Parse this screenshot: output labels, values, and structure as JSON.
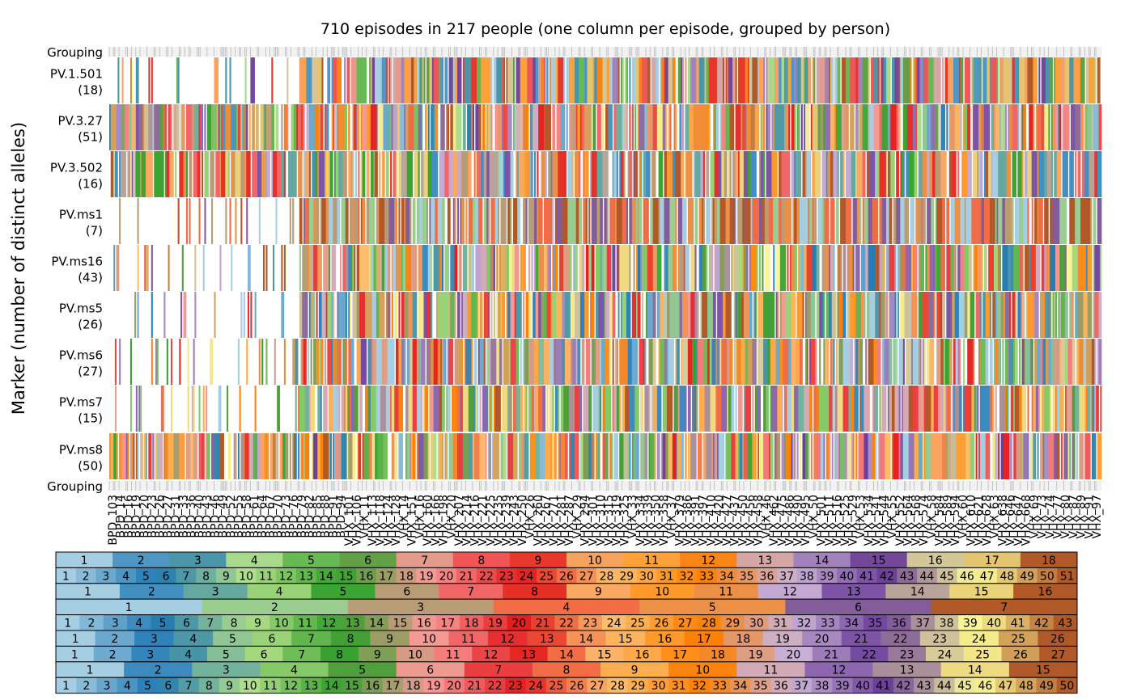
{
  "chart_data": {
    "type": "heatmap",
    "title": "710 episodes in 217 people (one column per episode, grouped by person)",
    "ylabel": "Marker (number of distinct alleles)",
    "grouping_label": "Grouping",
    "n_episodes": 710,
    "n_people": 217,
    "markers": [
      {
        "name": "PV.1.501",
        "alleles": "(18)",
        "n": 18
      },
      {
        "name": "PV.3.27",
        "alleles": "(51)",
        "n": 51
      },
      {
        "name": "PV.3.502",
        "alleles": "(16)",
        "n": 16
      },
      {
        "name": "PV.ms1",
        "alleles": "(7)",
        "n": 7
      },
      {
        "name": "PV.ms16",
        "alleles": "(43)",
        "n": 43
      },
      {
        "name": "PV.ms5",
        "alleles": "(26)",
        "n": 26
      },
      {
        "name": "PV.ms6",
        "alleles": "(27)",
        "n": 27
      },
      {
        "name": "PV.ms7",
        "alleles": "(15)",
        "n": 15
      },
      {
        "name": "PV.ms8",
        "alleles": "(50)",
        "n": 50
      }
    ],
    "x_tick_labels": [
      "BPD_103",
      "BPD_14",
      "BPD_16",
      "BPD_19",
      "BPD_20",
      "BPD_23",
      "BPD_26",
      "BPD_27",
      "BPD_31",
      "BPD_33",
      "BPD_36",
      "BPD_40",
      "BPD_43",
      "BPD_46",
      "BPD_49",
      "BPD_52",
      "BPD_55",
      "BPD_58",
      "BPD_61",
      "BPD_64",
      "BPD_67",
      "BPD_70",
      "BPD_73",
      "BPD_76",
      "BPD_79",
      "BPD_82",
      "BPD_85",
      "BPD_88",
      "BPD_91",
      "BPD_94",
      "VHX_101",
      "VHX_106",
      "VHX_11",
      "VHX_113",
      "VHX_118",
      "VHX_124",
      "VHX_128",
      "VHX_14",
      "VHX_151",
      "VHX_16",
      "VHX_160",
      "VHX_166",
      "VHX_198",
      "VHX_20",
      "VHX_207",
      "VHX_214",
      "VHX_216",
      "VHX_221",
      "VHX_225",
      "VHX_235",
      "VHX_239",
      "VHX_243",
      "VHX_250",
      "VHX_26",
      "VHX_260",
      "VHX_267",
      "VHX_271",
      "VHX_281",
      "VHX_287",
      "VHX_29",
      "VHX_294",
      "VHX_301",
      "VHX_310",
      "VHX_315",
      "VHX_319",
      "VHX_325",
      "VHX_33",
      "VHX_334",
      "VHX_339",
      "VHX_350",
      "VHX_358",
      "VHX_37",
      "VHX_379",
      "VHX_386",
      "VHX_391",
      "VHX_397",
      "VHX_410",
      "VHX_420",
      "VHX_427",
      "VHX_437",
      "VHX_450",
      "VHX_456",
      "VHX_458",
      "VHX_46",
      "VHX_462",
      "VHX_475",
      "VHX_486",
      "VHX_490",
      "VHX_495",
      "VHX_50",
      "VHX_501",
      "VHX_511",
      "VHX_516",
      "VHX_525",
      "VHX_529",
      "VHX_53",
      "VHX_534",
      "VHX_541",
      "VHX_544",
      "VHX_55",
      "VHX_552",
      "VHX_564",
      "VHX_568",
      "VHX_574",
      "VHX_58",
      "VHX_584",
      "VHX_589",
      "VHX_594",
      "VHX_60",
      "VHX_610",
      "VHX_621",
      "VHX_628",
      "VHX_63",
      "VHX_638",
      "VHX_646",
      "VHX_647",
      "VHX_668",
      "VHX_69",
      "VHX_73",
      "VHX_74",
      "VHX_77",
      "VHX_80",
      "VHX_87",
      "VHX_89",
      "VHX_91",
      "VHX_97"
    ],
    "color_keys": [
      {
        "marker": "PV.1.501",
        "n": 18
      },
      {
        "marker": "PV.3.27",
        "n": 51
      },
      {
        "marker": "PV.3.502",
        "n": 16
      },
      {
        "marker": "PV.ms1",
        "n": 7
      },
      {
        "marker": "PV.ms16",
        "n": 43
      },
      {
        "marker": "PV.ms5",
        "n": 26
      },
      {
        "marker": "PV.ms6",
        "n": 27
      },
      {
        "marker": "PV.ms7",
        "n": 15
      },
      {
        "marker": "PV.ms8",
        "n": 50
      }
    ],
    "palette": [
      "#a6cee3",
      "#1f78b4",
      "#b2df8a",
      "#33a02c",
      "#fb9a99",
      "#e31a1c",
      "#fdbf6f",
      "#ff7f00",
      "#cab2d6",
      "#6a3d9a",
      "#ffff99",
      "#b15928"
    ]
  }
}
